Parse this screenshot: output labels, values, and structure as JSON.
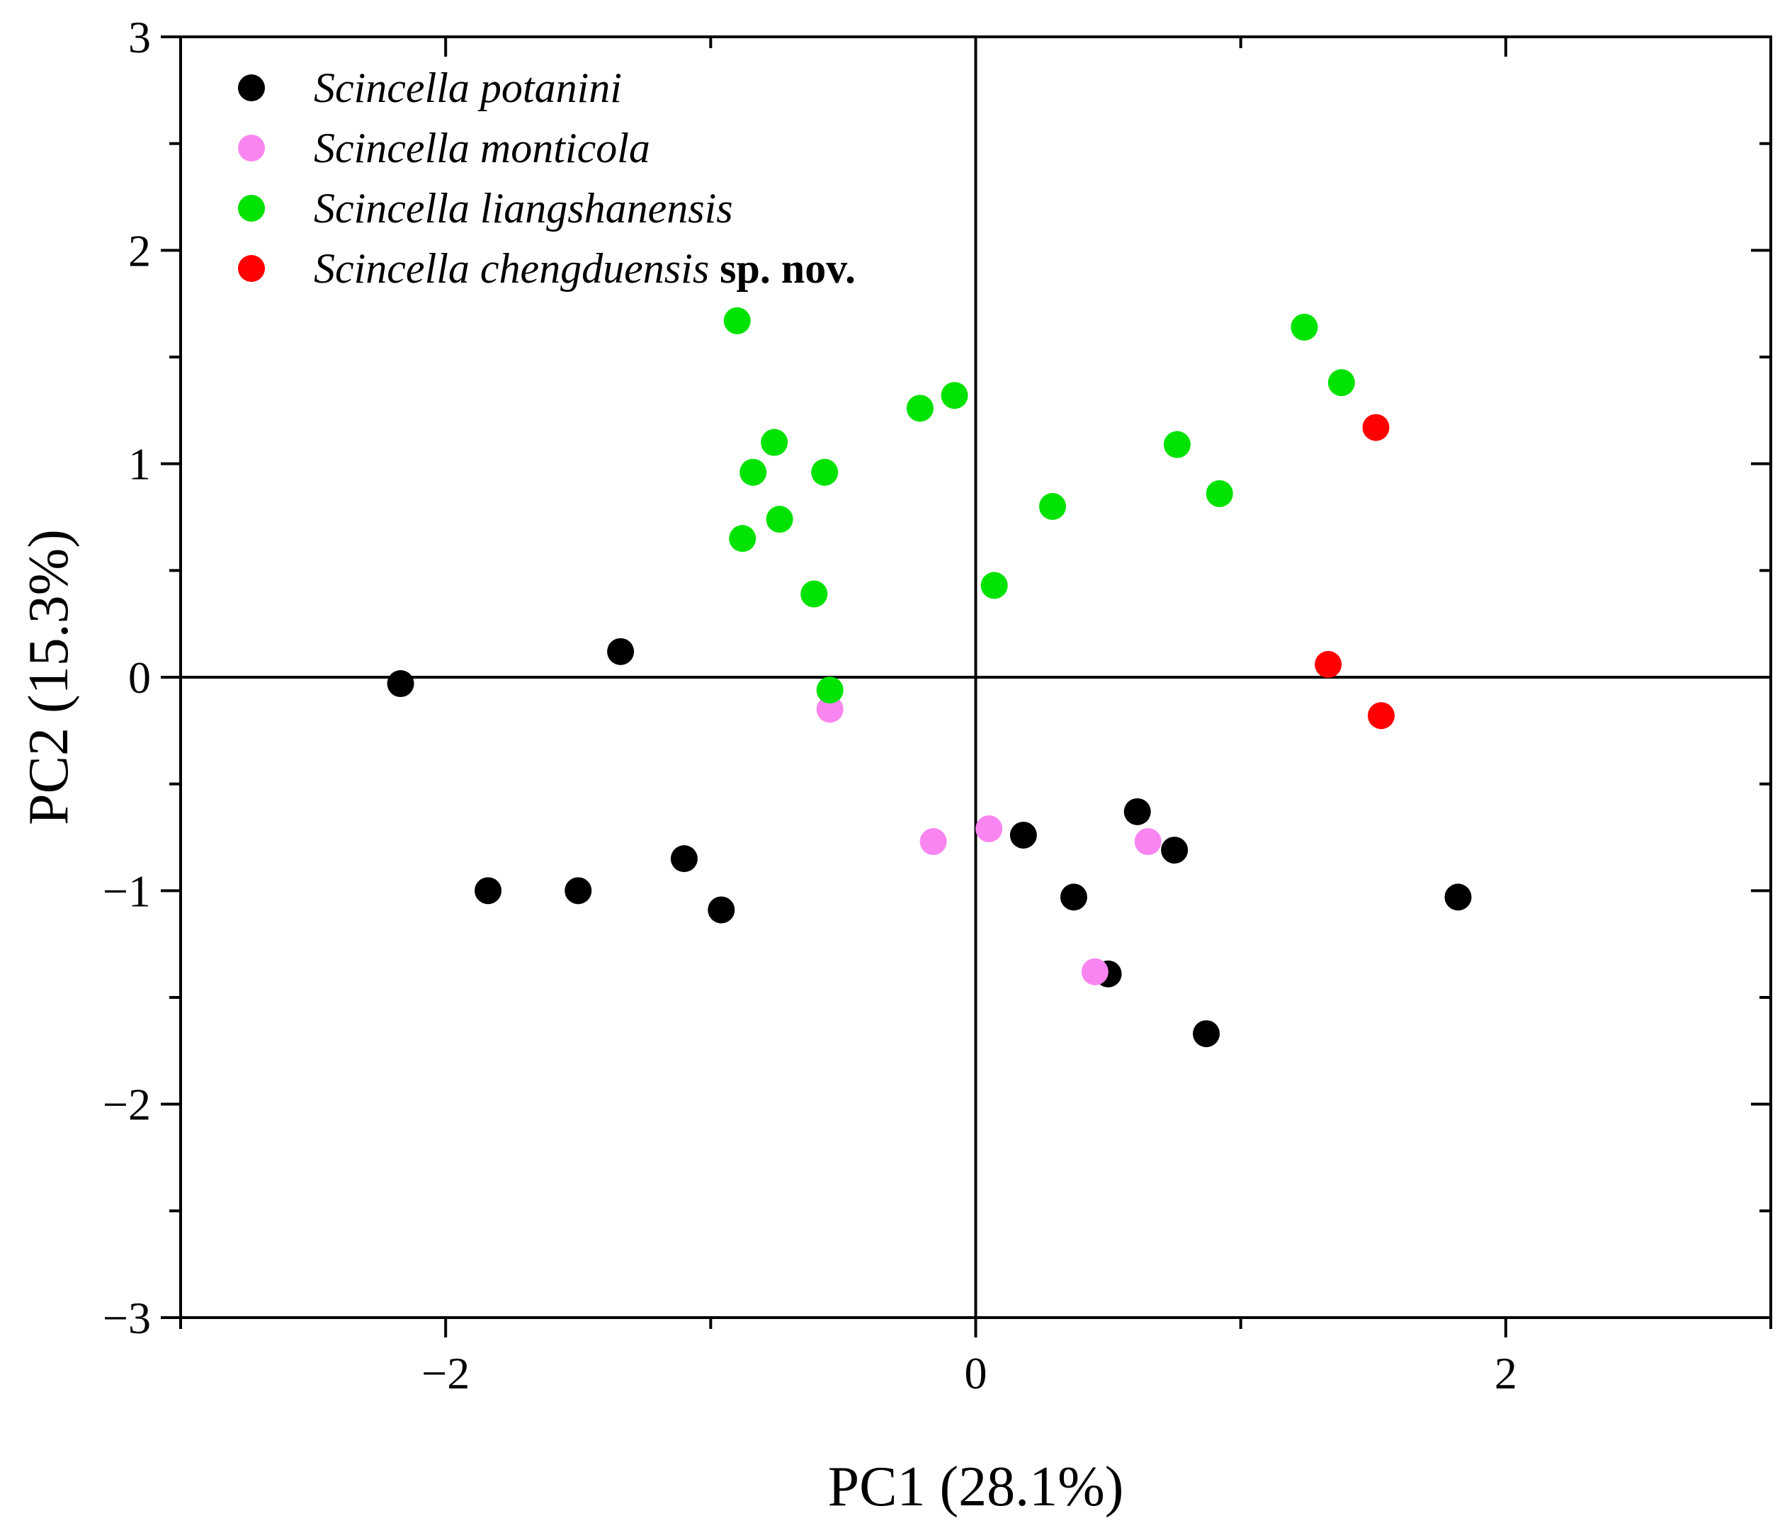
{
  "chart_data": {
    "type": "scatter",
    "xlabel": "PC1 (28.1%)",
    "ylabel": "PC2 (15.3%)",
    "xlim": [
      -3,
      3
    ],
    "ylim": [
      -3,
      3
    ],
    "x_ticks": [
      -2,
      0,
      2
    ],
    "x_tick_labels": [
      "−2",
      "0",
      "2"
    ],
    "y_ticks": [
      -3,
      -2,
      -1,
      0,
      1,
      2,
      3
    ],
    "y_tick_labels": [
      "−3",
      "−2",
      "−1",
      "0",
      "1",
      "2",
      "3"
    ],
    "grid": false,
    "zero_lines": true,
    "legend_position": "top-left",
    "series": [
      {
        "name": "Scincella potanini",
        "suffix": "",
        "color": "#000000",
        "points": [
          [
            -2.17,
            -0.03
          ],
          [
            -1.34,
            0.12
          ],
          [
            -1.84,
            -1.0
          ],
          [
            -1.5,
            -1.0
          ],
          [
            -1.1,
            -0.85
          ],
          [
            -0.96,
            -1.09
          ],
          [
            0.18,
            -0.74
          ],
          [
            0.61,
            -0.63
          ],
          [
            0.75,
            -0.81
          ],
          [
            0.37,
            -1.03
          ],
          [
            0.5,
            -1.39
          ],
          [
            0.87,
            -1.67
          ],
          [
            1.82,
            -1.03
          ]
        ]
      },
      {
        "name": "Scincella monticola",
        "suffix": "",
        "color": "#f986f0",
        "points": [
          [
            -0.55,
            -0.15
          ],
          [
            -0.16,
            -0.77
          ],
          [
            0.05,
            -0.71
          ],
          [
            0.65,
            -0.77
          ],
          [
            0.45,
            -1.38
          ]
        ]
      },
      {
        "name": "Scincella liangshanensis",
        "suffix": "",
        "color": "#00e200",
        "points": [
          [
            -0.9,
            1.67
          ],
          [
            -0.76,
            1.1
          ],
          [
            -0.84,
            0.96
          ],
          [
            -0.57,
            0.96
          ],
          [
            -0.74,
            0.74
          ],
          [
            -0.88,
            0.65
          ],
          [
            -0.61,
            0.39
          ],
          [
            -0.55,
            -0.06
          ],
          [
            -0.21,
            1.26
          ],
          [
            -0.08,
            1.32
          ],
          [
            0.07,
            0.43
          ],
          [
            0.29,
            0.8
          ],
          [
            0.76,
            1.09
          ],
          [
            0.92,
            0.86
          ],
          [
            1.24,
            1.64
          ],
          [
            1.38,
            1.38
          ]
        ]
      },
      {
        "name": "Scincella chengduensis",
        "suffix": "sp. nov.",
        "color": "#ff0000",
        "points": [
          [
            1.51,
            1.17
          ],
          [
            1.33,
            0.06
          ],
          [
            1.53,
            -0.18
          ]
        ]
      }
    ]
  }
}
